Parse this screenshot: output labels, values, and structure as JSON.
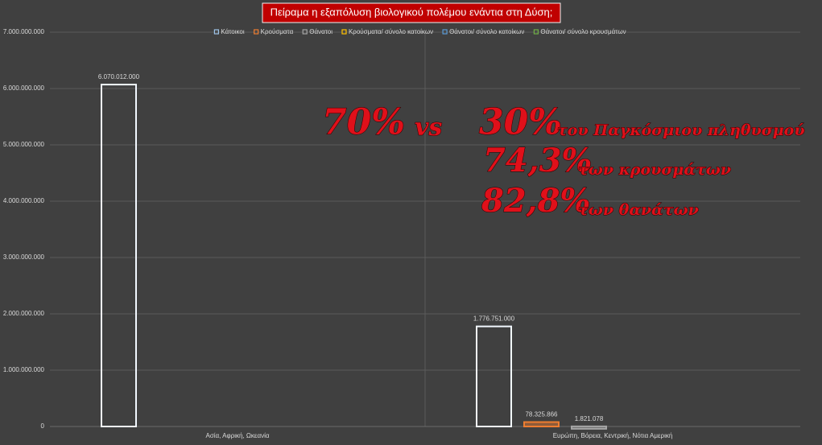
{
  "chart_data": {
    "type": "bar",
    "title": "Πείραμα η εξαπόλυση βιολογικού πολέμου ενάντια στη Δύση;",
    "categories": [
      "Ασία, Αφρική, Ωκεανία",
      "Ευρώπη, Βόρεια, Κεντρική, Νότια Αμερική"
    ],
    "series": [
      {
        "name": "Κάτοικοι",
        "color": "#9dc3e6",
        "values": [
          6070012000,
          1776751000
        ],
        "value_labels": [
          "6.070.012.000",
          "1.776.751.000"
        ]
      },
      {
        "name": "Κρούσματα",
        "color": "#ed7d31",
        "values": [
          null,
          78325866
        ],
        "value_labels": [
          null,
          "78.325.866"
        ]
      },
      {
        "name": "Θάνατοι",
        "color": "#a5a5a5",
        "values": [
          null,
          1821078
        ],
        "value_labels": [
          null,
          "1.821.078"
        ]
      },
      {
        "name": "Κρούσματα/ σύνολο κατοίκων",
        "color": "#ffc000",
        "values": [
          null,
          null
        ]
      },
      {
        "name": "Θάνατοι/ σύνολο κατοίκων",
        "color": "#5b9bd5",
        "values": [
          null,
          null
        ]
      },
      {
        "name": "Θάνατοι/ σύνολο κρουσμάτων",
        "color": "#70ad47",
        "values": [
          null,
          null
        ]
      }
    ],
    "ylim": [
      0,
      7000000000
    ],
    "yticks": [
      0,
      {
        "value": 1000000000,
        "label": "1.000.000.000"
      },
      {
        "value": 2000000000,
        "label": "2.000.000.000"
      },
      {
        "value": 3000000000,
        "label": "3.000.000.000"
      },
      {
        "value": 4000000000,
        "label": "4.000.000.000"
      },
      {
        "value": 5000000000,
        "label": "5.000.000.000"
      },
      {
        "value": 6000000000,
        "label": "6.000.000.000"
      },
      {
        "value": 7000000000,
        "label": "7.000.000.000"
      }
    ],
    "grid": true,
    "legend": "top",
    "annotations": [
      "70%",
      "vs",
      "30%",
      "του Παγκόσμιου πληθυσμού",
      "74,3%",
      "των κρουσμάτων",
      "82,8%",
      "των θανάτων"
    ]
  }
}
